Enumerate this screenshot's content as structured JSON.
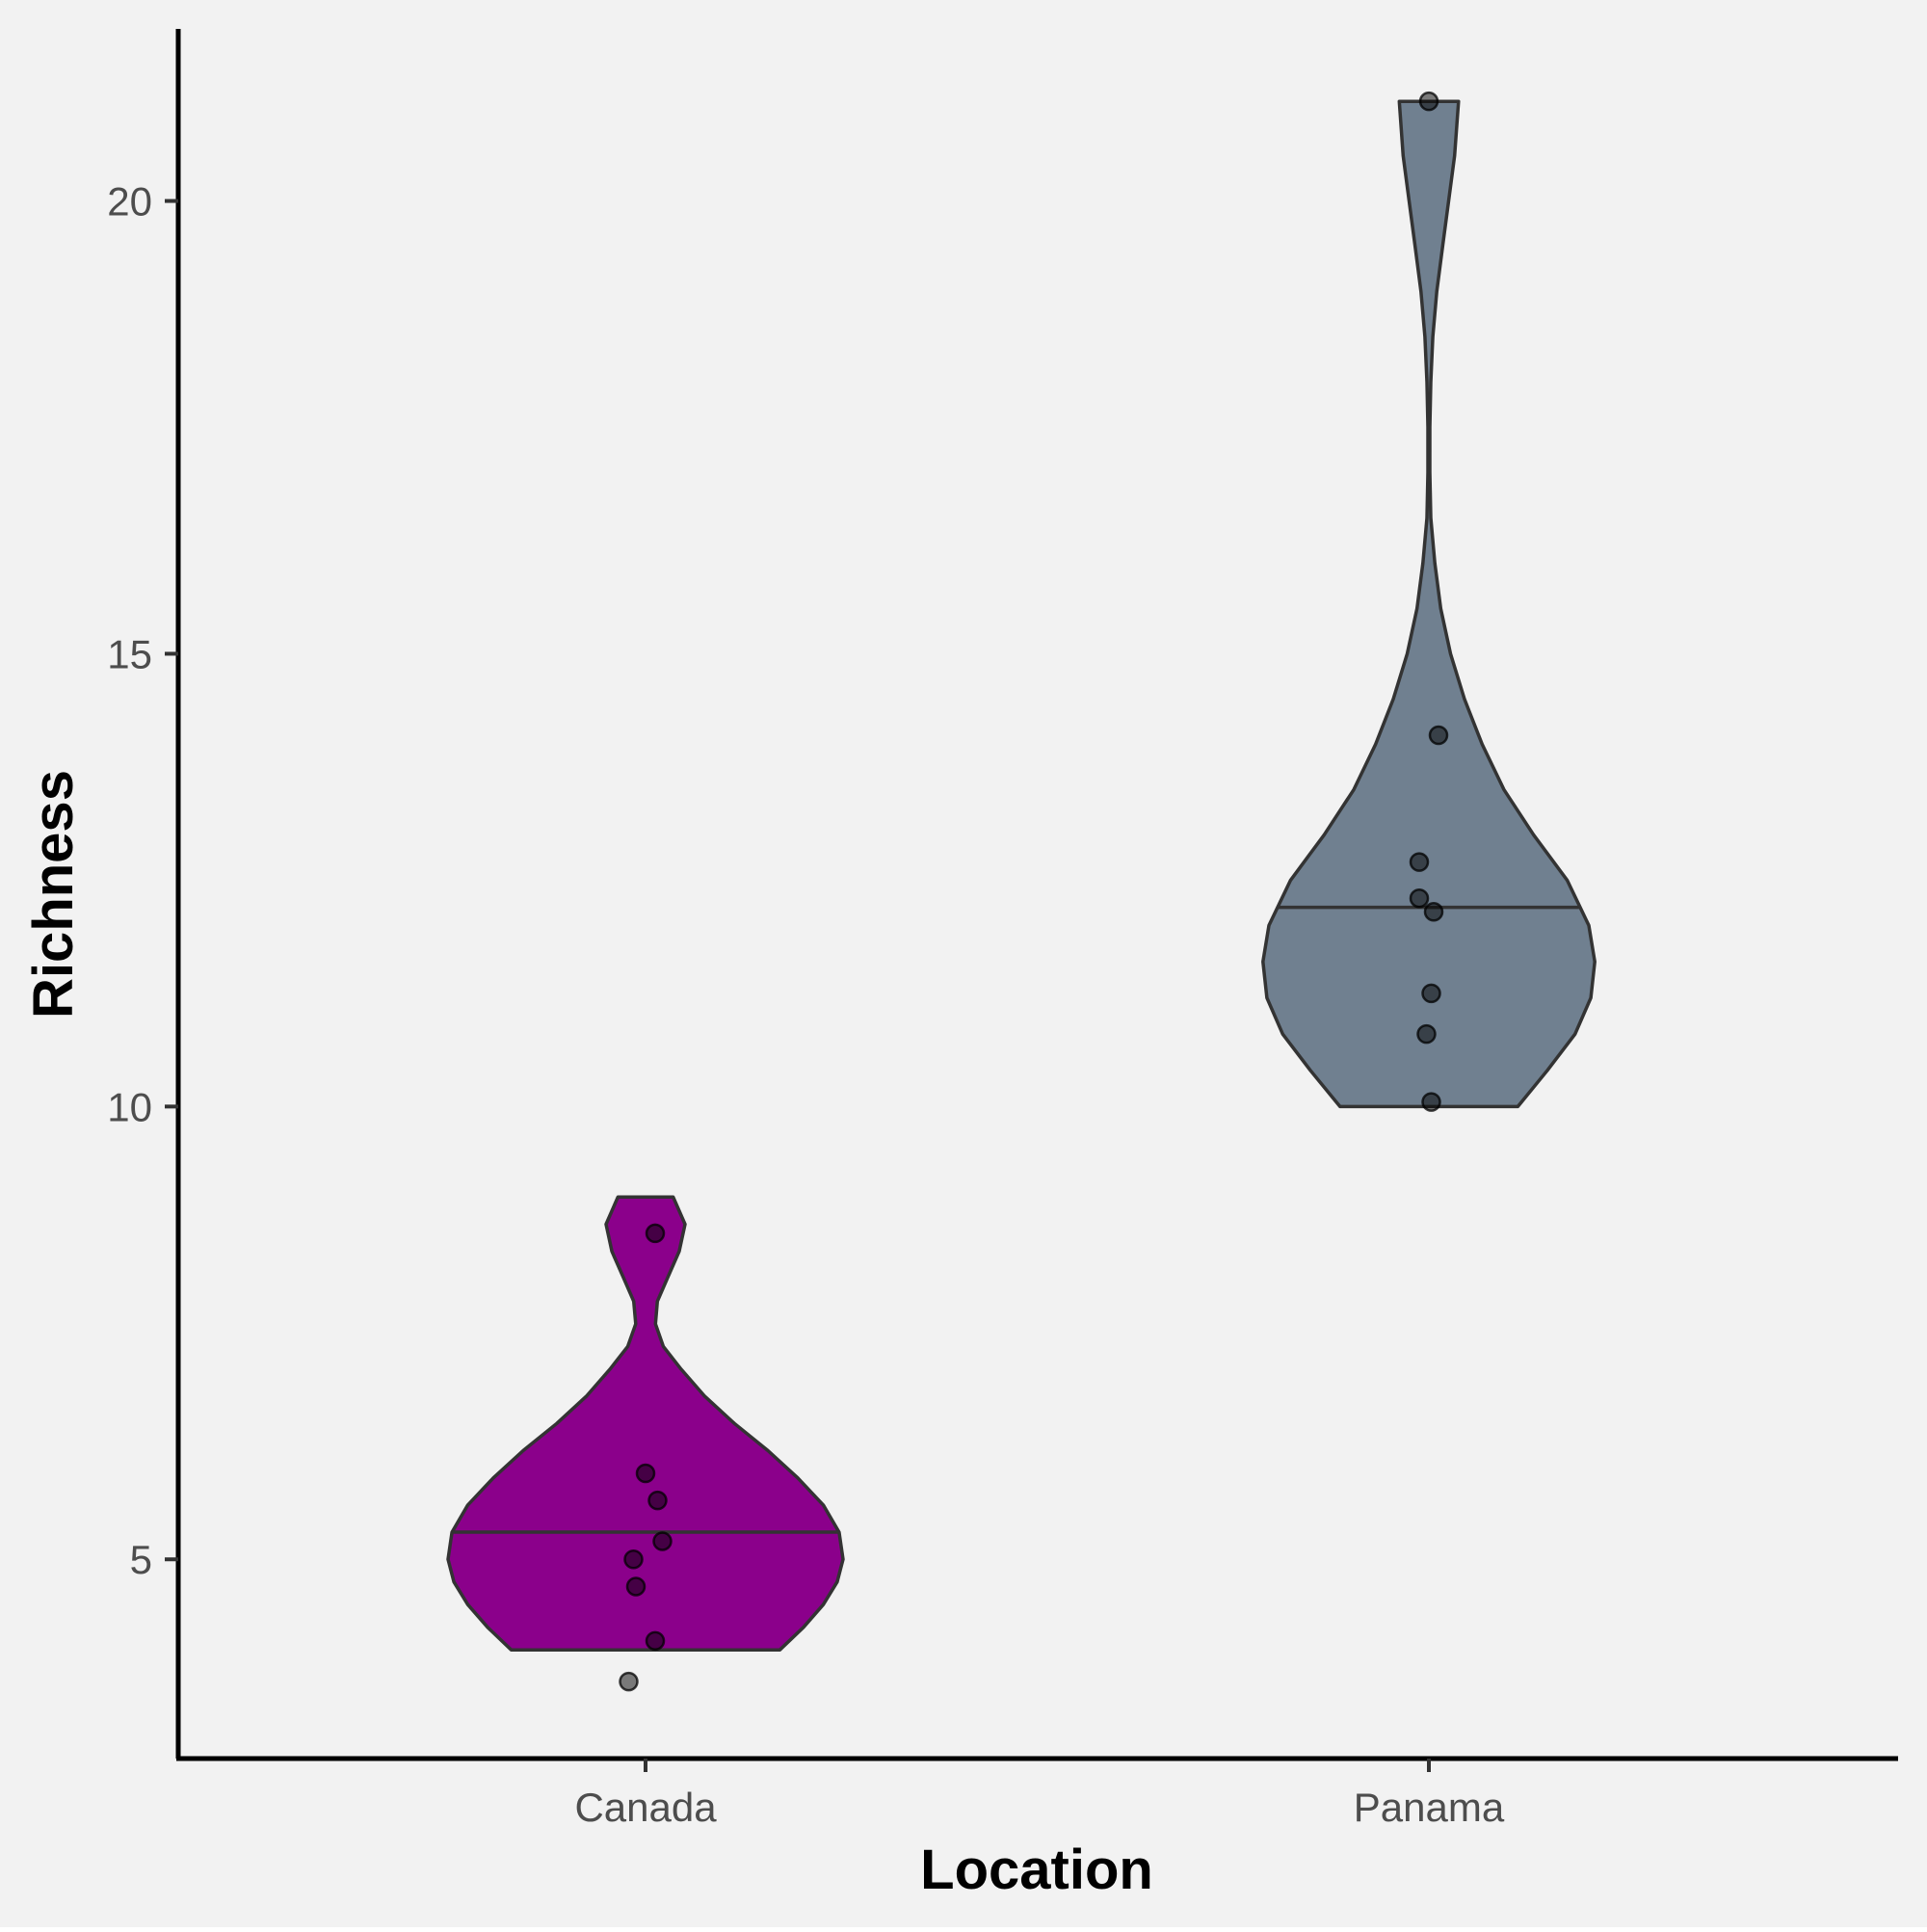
{
  "chart_data": {
    "type": "violin",
    "xlabel": "Location",
    "ylabel": "Richness",
    "categories": [
      "Canada",
      "Panama"
    ],
    "ylim": [
      2.8,
      21.9
    ],
    "yticks": [
      5,
      10,
      15,
      20
    ],
    "grid": false,
    "legend": "none",
    "background_color": "#f2f2f2",
    "groups": [
      {
        "category": "Canada",
        "fill": "#8b008b",
        "range": [
          4,
          9
        ],
        "median": 5.3,
        "density": [
          [
            4.0,
            0.68
          ],
          [
            4.25,
            0.8
          ],
          [
            4.5,
            0.9
          ],
          [
            4.75,
            0.97
          ],
          [
            5.0,
            1.0
          ],
          [
            5.3,
            0.98
          ],
          [
            5.6,
            0.9
          ],
          [
            5.9,
            0.77
          ],
          [
            6.2,
            0.62
          ],
          [
            6.5,
            0.45
          ],
          [
            6.8,
            0.3
          ],
          [
            7.1,
            0.18
          ],
          [
            7.35,
            0.09
          ],
          [
            7.6,
            0.05
          ],
          [
            7.85,
            0.06
          ],
          [
            8.1,
            0.11
          ],
          [
            8.4,
            0.17
          ],
          [
            8.7,
            0.2
          ],
          [
            9.0,
            0.14
          ]
        ],
        "points": [
          {
            "x_jitter": -0.07,
            "y": 3.65
          },
          {
            "x_jitter": -0.04,
            "y": 4.7
          },
          {
            "x_jitter": -0.05,
            "y": 5.0
          },
          {
            "x_jitter": 0.07,
            "y": 5.2
          },
          {
            "x_jitter": 0.05,
            "y": 5.65
          },
          {
            "x_jitter": 0.0,
            "y": 5.95
          },
          {
            "x_jitter": 0.04,
            "y": 4.1
          },
          {
            "x_jitter": 0.04,
            "y": 8.6
          }
        ]
      },
      {
        "category": "Panama",
        "fill": "#708090",
        "range": [
          10,
          21.1
        ],
        "median": 12.2,
        "density": [
          [
            10.0,
            0.45
          ],
          [
            10.4,
            0.6
          ],
          [
            10.8,
            0.74
          ],
          [
            11.2,
            0.82
          ],
          [
            11.6,
            0.84
          ],
          [
            12.0,
            0.81
          ],
          [
            12.5,
            0.7
          ],
          [
            13.0,
            0.53
          ],
          [
            13.5,
            0.38
          ],
          [
            14.0,
            0.27
          ],
          [
            14.5,
            0.18
          ],
          [
            15.0,
            0.11
          ],
          [
            15.5,
            0.06
          ],
          [
            16.0,
            0.03
          ],
          [
            16.5,
            0.01
          ],
          [
            17.0,
            0.005
          ],
          [
            17.5,
            0.005
          ],
          [
            18.0,
            0.01
          ],
          [
            18.5,
            0.02
          ],
          [
            19.0,
            0.04
          ],
          [
            19.5,
            0.07
          ],
          [
            20.0,
            0.1
          ],
          [
            20.5,
            0.13
          ],
          [
            21.1,
            0.15
          ]
        ],
        "points": [
          {
            "x_jitter": 0.0,
            "y": 21.1
          },
          {
            "x_jitter": 0.04,
            "y": 14.1
          },
          {
            "x_jitter": -0.04,
            "y": 12.7
          },
          {
            "x_jitter": -0.04,
            "y": 12.3
          },
          {
            "x_jitter": 0.02,
            "y": 12.15
          },
          {
            "x_jitter": 0.01,
            "y": 11.25
          },
          {
            "x_jitter": -0.01,
            "y": 10.8
          },
          {
            "x_jitter": 0.01,
            "y": 10.05
          }
        ]
      }
    ]
  }
}
